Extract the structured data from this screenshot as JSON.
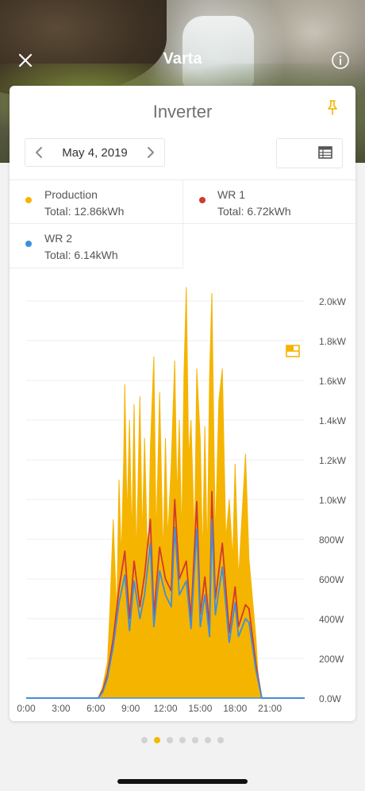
{
  "header": {
    "title": "Varta",
    "close_icon": "close-icon",
    "info_icon": "info-icon"
  },
  "card": {
    "title": "Inverter",
    "pin_icon": "pin-icon",
    "date": "May 4, 2019",
    "view_options": [
      "chart-view-icon",
      "table-view-icon"
    ],
    "legend": [
      {
        "name": "Production",
        "total": "Total: 12.86kWh",
        "color": "#f5b400"
      },
      {
        "name": "WR 1",
        "total": "Total: 6.72kWh",
        "color": "#d13a2f"
      },
      {
        "name": "WR 2",
        "total": "Total: 6.14kWh",
        "color": "#3f8fd9"
      }
    ]
  },
  "chart_data": {
    "type": "area",
    "x_ticks": [
      "0:00",
      "3:00",
      "6:00",
      "9:00",
      "12:00",
      "15:00",
      "18:00",
      "21:00"
    ],
    "y_ticks": [
      "0.0W",
      "200W",
      "400W",
      "600W",
      "800W",
      "1.0kW",
      "1.2kW",
      "1.4kW",
      "1.6kW",
      "1.8kW",
      "2.0kW"
    ],
    "ylim": [
      0,
      2000
    ],
    "xlim": [
      0,
      24
    ],
    "grid": true,
    "series": [
      {
        "name": "Production",
        "color": "#f5b400",
        "x": [
          0,
          6.2,
          6.6,
          7.0,
          7.2,
          7.5,
          7.8,
          8.0,
          8.2,
          8.4,
          8.5,
          8.7,
          8.9,
          9.1,
          9.3,
          9.5,
          9.8,
          10.0,
          10.2,
          10.5,
          10.7,
          11.0,
          11.2,
          11.5,
          11.8,
          12.0,
          12.2,
          12.5,
          12.8,
          13.0,
          13.2,
          13.4,
          13.6,
          13.8,
          14.0,
          14.2,
          14.5,
          14.7,
          15.0,
          15.2,
          15.4,
          15.6,
          15.8,
          16.0,
          16.3,
          16.6,
          16.9,
          17.2,
          17.5,
          17.8,
          18.0,
          18.3,
          18.6,
          18.9,
          19.2,
          19.5,
          19.8,
          20.0,
          20.3,
          24
        ],
        "values": [
          0,
          0,
          60,
          180,
          420,
          900,
          420,
          1100,
          700,
          1200,
          1580,
          900,
          1400,
          800,
          1480,
          700,
          1520,
          800,
          1310,
          600,
          1260,
          1720,
          800,
          1540,
          700,
          1310,
          800,
          1180,
          1700,
          1000,
          1400,
          800,
          1640,
          2070,
          1200,
          1400,
          800,
          1660,
          1300,
          700,
          1370,
          700,
          1620,
          2040,
          800,
          1500,
          1660,
          800,
          1000,
          700,
          1180,
          600,
          920,
          1230,
          700,
          500,
          300,
          100,
          0,
          0
        ]
      },
      {
        "name": "WR 1",
        "color": "#d13a2f",
        "x": [
          0,
          6.2,
          6.6,
          7.0,
          7.5,
          8.0,
          8.5,
          8.9,
          9.3,
          9.8,
          10.2,
          10.7,
          11.0,
          11.5,
          12.0,
          12.5,
          12.8,
          13.2,
          13.8,
          14.2,
          14.7,
          15.0,
          15.4,
          15.8,
          16.0,
          16.3,
          16.9,
          17.5,
          18.0,
          18.3,
          18.9,
          19.2,
          19.8,
          20.3,
          24
        ],
        "values": [
          0,
          0,
          40,
          120,
          300,
          550,
          740,
          400,
          690,
          460,
          620,
          900,
          420,
          760,
          600,
          540,
          1000,
          600,
          690,
          400,
          990,
          420,
          610,
          360,
          1040,
          500,
          780,
          330,
          560,
          360,
          470,
          450,
          170,
          0,
          0
        ]
      },
      {
        "name": "WR 2",
        "color": "#3f8fd9",
        "x": [
          0,
          6.2,
          6.6,
          7.0,
          7.5,
          8.0,
          8.5,
          8.9,
          9.3,
          9.8,
          10.2,
          10.7,
          11.0,
          11.5,
          12.0,
          12.5,
          12.8,
          13.2,
          13.8,
          14.2,
          14.7,
          15.0,
          15.4,
          15.8,
          16.0,
          16.3,
          16.9,
          17.5,
          18.0,
          18.3,
          18.9,
          19.2,
          19.8,
          20.3,
          24
        ],
        "values": [
          0,
          0,
          30,
          100,
          260,
          480,
          620,
          340,
          590,
          400,
          520,
          780,
          360,
          640,
          520,
          460,
          860,
          520,
          590,
          350,
          850,
          360,
          520,
          310,
          900,
          420,
          660,
          280,
          480,
          310,
          400,
          380,
          140,
          0,
          0
        ]
      }
    ]
  },
  "pager": {
    "count": 7,
    "active": 1
  }
}
